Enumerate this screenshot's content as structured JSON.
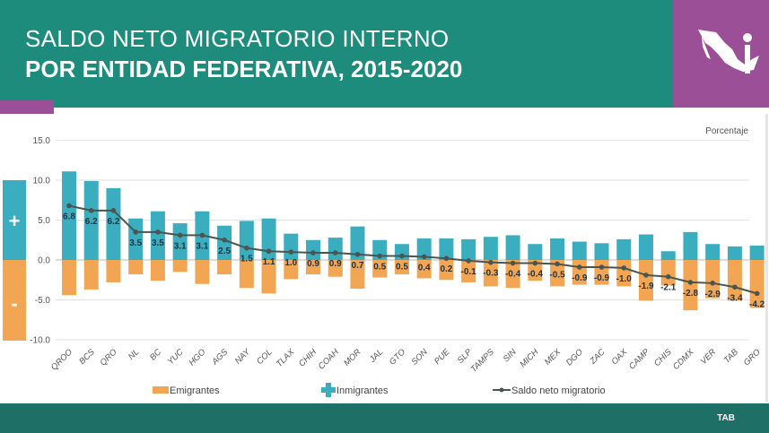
{
  "header": {
    "title_line1": "SALDO NETO MIGRATORIO INTERNO",
    "title_line2": "POR ENTIDAD FEDERATIVA, 2015-2020",
    "logo": "mexico-map-info-icon"
  },
  "footer": {
    "label": "TAB"
  },
  "colors": {
    "teal": "#1d8c7c",
    "purple": "#9b4f96",
    "inmigrantes": "#3aaebf",
    "emigrantes": "#f2a552",
    "line": "#4a5550"
  },
  "chart_data": {
    "type": "bar",
    "unit_label": "Porcentaje",
    "ylim": [
      -10,
      15
    ],
    "yticks": [
      "15.0",
      "10.0",
      "5.0",
      "0.0",
      "-5.0",
      "-10.0"
    ],
    "ytick_values": [
      15,
      10,
      5,
      0,
      -5,
      -10
    ],
    "grid": true,
    "legend_placement": "bottom",
    "side_signs": [
      "+",
      "-"
    ],
    "categories": [
      "QROO",
      "BCS",
      "QRO",
      "NL",
      "BC",
      "YUC",
      "HGO",
      "AGS",
      "NAY",
      "COL",
      "TLAX",
      "CHIH",
      "COAH",
      "MOR",
      "JAL",
      "GTO",
      "SON",
      "PUE",
      "SLP",
      "TAMPS",
      "SIN",
      "MICH",
      "MEX",
      "DGO",
      "ZAC",
      "OAX",
      "CAMP",
      "CHIS",
      "CDMX",
      "VER",
      "TAB",
      "GRO"
    ],
    "series": [
      {
        "name": "Emigrantes",
        "type": "bar",
        "values": [
          -4.4,
          -3.7,
          -2.8,
          -1.8,
          -2.6,
          -1.5,
          -3.0,
          -1.8,
          -3.5,
          -4.2,
          -2.4,
          -1.8,
          -2.1,
          -3.6,
          -2.2,
          -1.8,
          -2.3,
          -2.5,
          -2.8,
          -3.3,
          -3.5,
          -2.6,
          -3.3,
          -3.1,
          -3.1,
          -3.3,
          -5.1,
          -3.2,
          -6.3,
          -4.8,
          -5.1,
          -6.0
        ]
      },
      {
        "name": "Inmigrantes",
        "type": "bar",
        "values": [
          11.1,
          9.9,
          9.0,
          5.2,
          6.1,
          4.6,
          6.1,
          4.3,
          4.9,
          5.2,
          3.3,
          2.5,
          2.8,
          4.2,
          2.5,
          2.0,
          2.7,
          2.7,
          2.6,
          2.9,
          3.1,
          2.0,
          2.7,
          2.3,
          2.1,
          2.6,
          3.2,
          1.1,
          3.5,
          2.0,
          1.7,
          1.8
        ]
      },
      {
        "name": "Saldo neto migratorio",
        "type": "line",
        "values": [
          6.8,
          6.2,
          6.2,
          3.5,
          3.5,
          3.1,
          3.1,
          2.5,
          1.5,
          1.1,
          1.0,
          0.9,
          0.9,
          0.7,
          0.5,
          0.5,
          0.4,
          0.2,
          -0.1,
          -0.3,
          -0.4,
          -0.4,
          -0.5,
          -0.9,
          -0.9,
          -1.0,
          -1.9,
          -2.1,
          -2.8,
          -2.9,
          -3.4,
          -4.2
        ],
        "labels": [
          "6.8",
          "6.2",
          "6.2",
          "3.5",
          "3.5",
          "3.1",
          "3.1",
          "2.5",
          "1.5",
          "1.1",
          "1.0",
          "0.9",
          "0.9",
          "0.7",
          "0.5",
          "0.5",
          "0.4",
          "0.2",
          "-0.1",
          "-0.3",
          "-0.4",
          "-0.4",
          "-0.5",
          "-0.9",
          "-0.9",
          "-1.0",
          "-1.9",
          "-2.1",
          "-2.8",
          "-2.9",
          "-3.4",
          "-4.2"
        ]
      }
    ]
  }
}
